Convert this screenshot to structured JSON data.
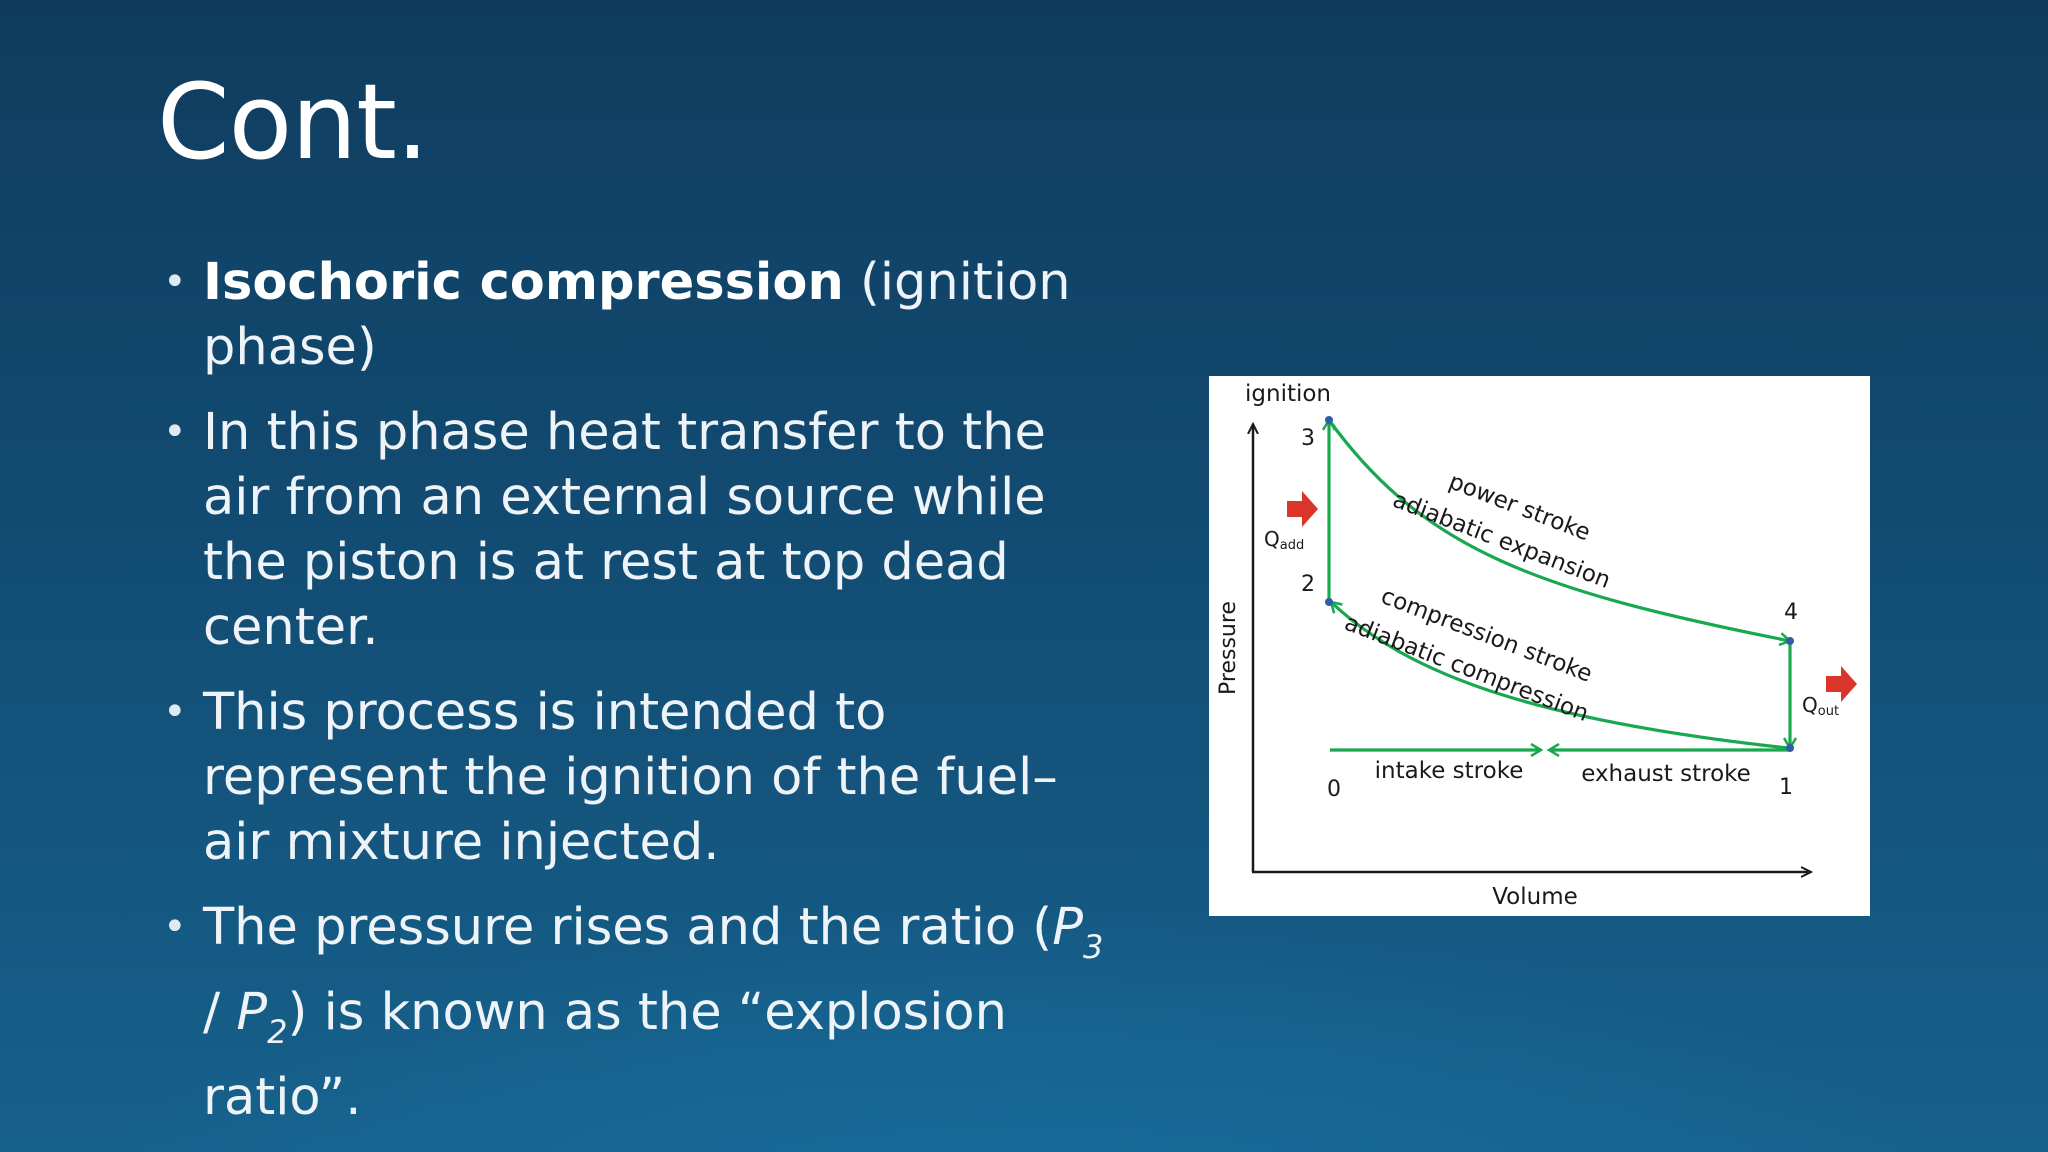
{
  "slide": {
    "title": "Cont.",
    "bullets": [
      {
        "bold": "Isochoric compression",
        "text": " (ignition phase)"
      },
      {
        "text": " In this phase heat transfer to the air from an external source while the piston is at rest at top dead center."
      },
      {
        "text": "This process is intended to represent the ignition of the fuel–air mixture injected."
      },
      {
        "text_before": "The pressure rises and the ratio (",
        "p3_symbol": "P",
        "p3_sub": "3",
        "slash": " / ",
        "p2_symbol": "P",
        "p2_sub": "2",
        "text_after": ") is known as the “explosion ratio”."
      }
    ]
  },
  "diagram": {
    "ignition_label": "ignition",
    "y_axis_label": "Pressure",
    "x_axis_label": "Volume",
    "points": {
      "p0": "0",
      "p1": "1",
      "p2": "2",
      "p3": "3",
      "p4": "4"
    },
    "power_stroke_label": "power stroke",
    "adiabatic_expansion_label": "adiabatic expansion",
    "compression_stroke_label": "compression stroke",
    "adiabatic_compression_label": "adiabatic compression",
    "intake_label": "intake stroke",
    "exhaust_label": "exhaust stroke",
    "q_add_main": "Q",
    "q_add_sub": "add",
    "q_out_main": "Q",
    "q_out_sub": "out",
    "curve_color": "#1aa84f",
    "arrow_color": "#d9352a"
  }
}
